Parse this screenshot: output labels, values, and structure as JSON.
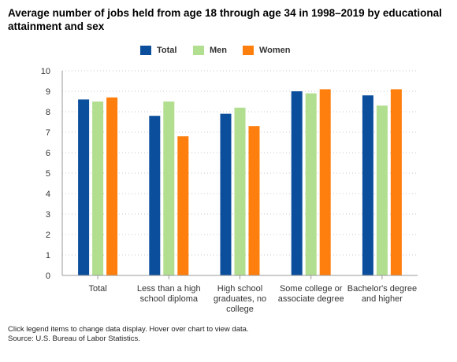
{
  "chart_data": {
    "type": "bar",
    "title": "Average number of jobs held from age 18 through age 34 in 1998–2019 by educational attainment and sex",
    "categories": [
      [
        "Total"
      ],
      [
        "Less than a high",
        "school diploma"
      ],
      [
        "High school",
        "graduates, no",
        "college"
      ],
      [
        "Some college or",
        "associate degree"
      ],
      [
        "Bachelor's degree",
        "and higher"
      ]
    ],
    "series": [
      {
        "name": "Total",
        "color": "#0b4f9c",
        "values": [
          8.6,
          7.8,
          7.9,
          9.0,
          8.8
        ]
      },
      {
        "name": "Men",
        "color": "#b1de8f",
        "values": [
          8.5,
          8.5,
          8.2,
          8.9,
          8.3
        ]
      },
      {
        "name": "Women",
        "color": "#ff7f0e",
        "values": [
          8.7,
          6.8,
          7.3,
          9.1,
          9.1
        ]
      }
    ],
    "ylim": [
      0,
      10
    ],
    "yticks": [
      0,
      1,
      2,
      3,
      4,
      5,
      6,
      7,
      8,
      9,
      10
    ],
    "grid": true,
    "legend": "top-center"
  },
  "footer": {
    "note": "Click legend items to change data display. Hover over chart to view data.",
    "source": "Source: U.S. Bureau of Labor Statistics."
  }
}
